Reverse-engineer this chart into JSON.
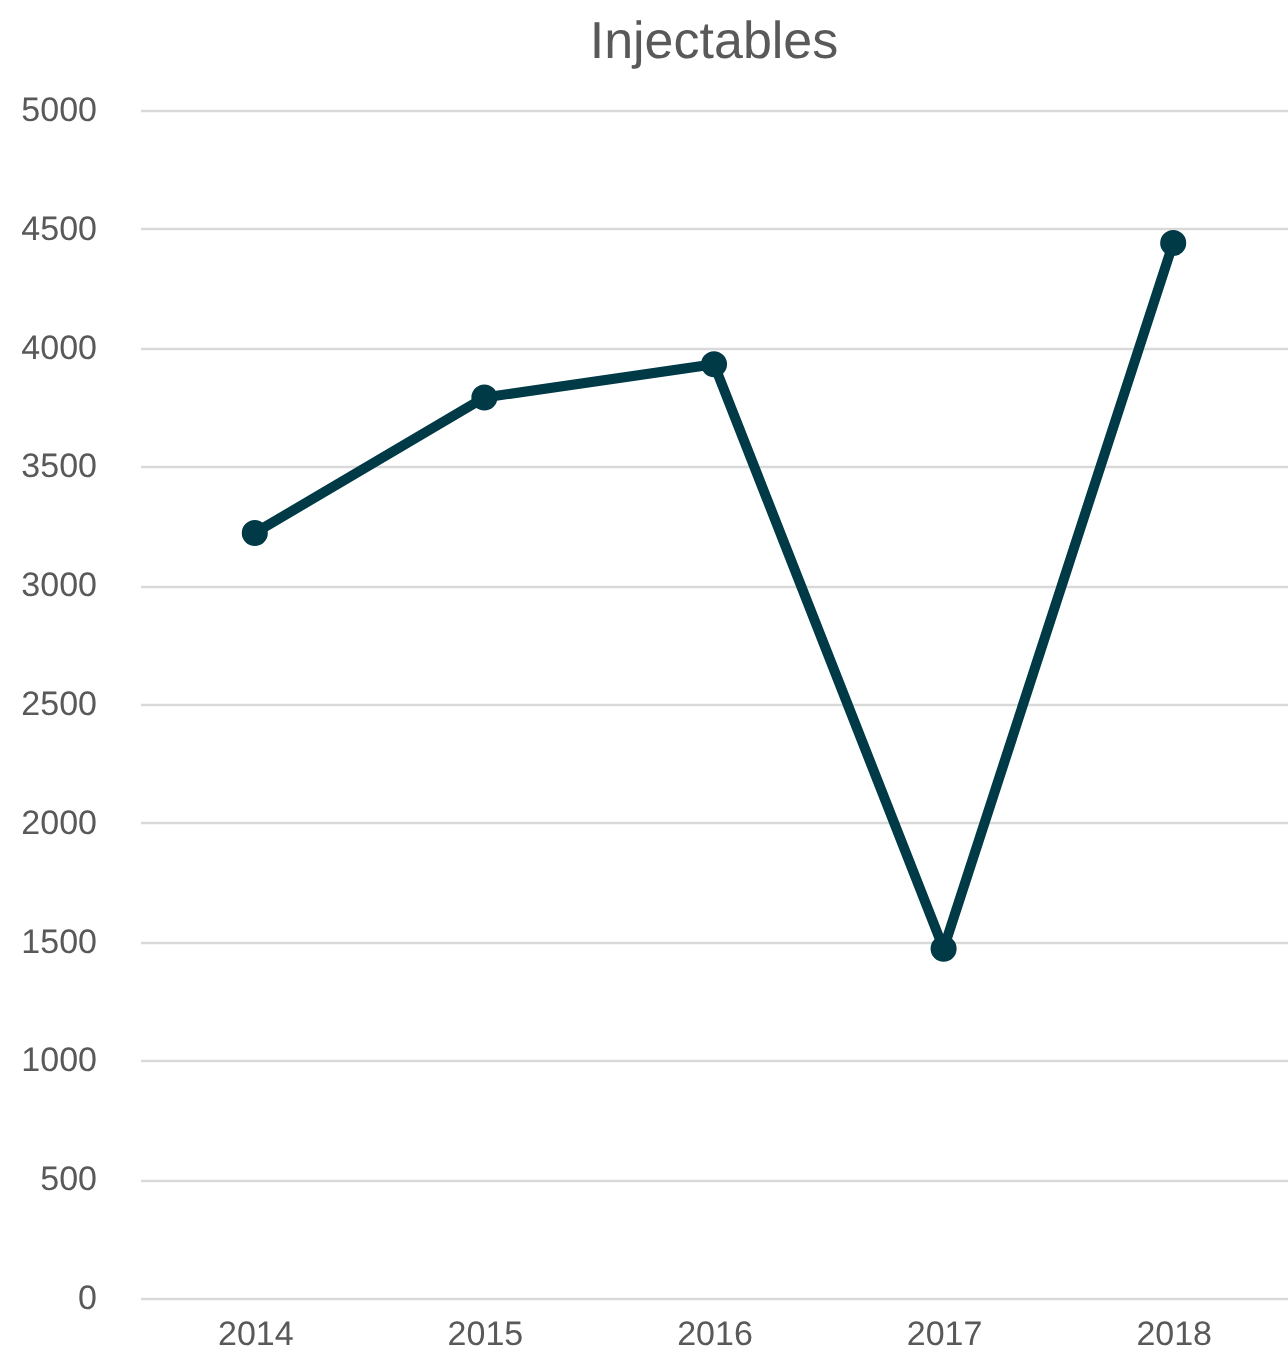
{
  "chart_data": {
    "type": "line",
    "title": "Injectables",
    "categories": [
      "2014",
      "2015",
      "2016",
      "2017",
      "2018"
    ],
    "series": [
      {
        "color": "#003a46",
        "values": [
          3220,
          3790,
          3930,
          1470,
          4440
        ]
      }
    ],
    "ylim": [
      0,
      5000
    ],
    "yticks": [
      0,
      500,
      1000,
      1500,
      2000,
      2500,
      3000,
      3500,
      4000,
      4500,
      5000
    ],
    "grid": "y",
    "marker": "circle",
    "line_style": "solid"
  }
}
